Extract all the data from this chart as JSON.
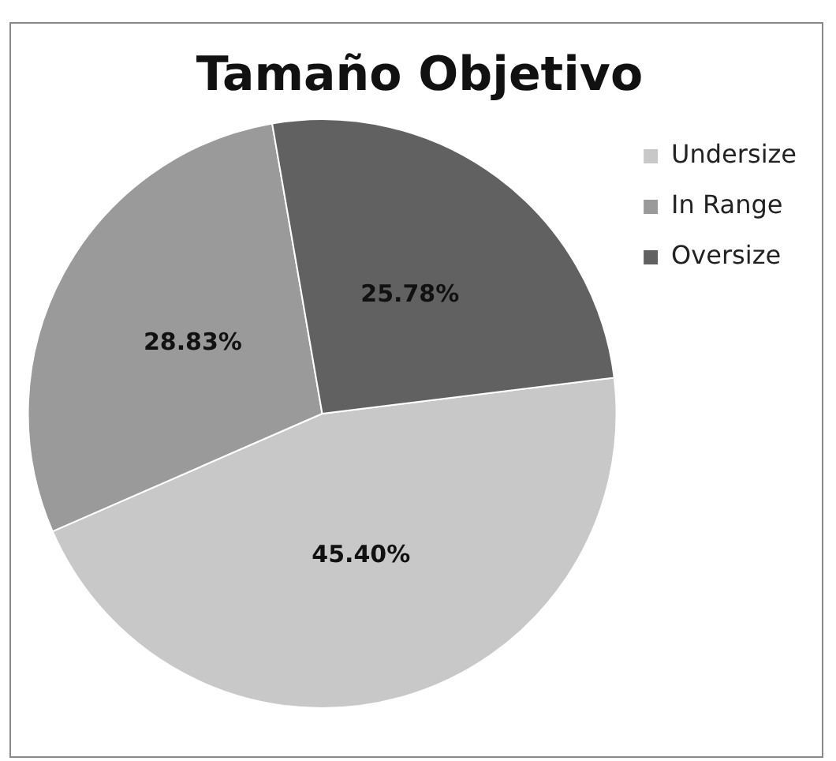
{
  "chart_data": {
    "type": "pie",
    "title": "Tamaño Objetivo",
    "categories": [
      "Undersize",
      "In Range",
      "Oversize"
    ],
    "values": [
      45.4,
      28.83,
      25.78
    ],
    "colors": [
      "#c8c8c8",
      "#9a9a9a",
      "#616161"
    ],
    "value_labels": [
      "45.40%",
      "28.83%",
      "25.78%"
    ],
    "legend": "top right"
  }
}
